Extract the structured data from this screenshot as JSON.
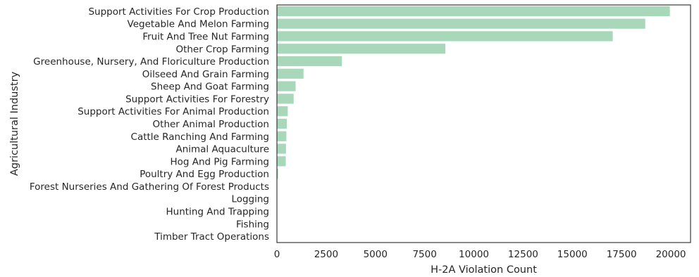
{
  "chart_data": {
    "type": "bar",
    "orientation": "horizontal",
    "xlabel": "H-2A Violation Count",
    "ylabel": "Agricultural Industry",
    "xlim": [
      0,
      21000
    ],
    "xticks": [
      0,
      2500,
      5000,
      7500,
      10000,
      12500,
      15000,
      17500,
      20000
    ],
    "grid": false,
    "bar_color": "#a8d8b9",
    "categories": [
      "Support Activities For Crop Production",
      "Vegetable And Melon Farming",
      "Fruit And Tree Nut Farming",
      "Other Crop Farming",
      "Greenhouse, Nursery, And Floriculture Production",
      "Oilseed And Grain Farming",
      "Sheep And Goat Farming",
      "Support Activities For Forestry",
      "Support Activities For Animal Production",
      "Other Animal Production",
      "Cattle Ranching And Farming",
      "Animal Aquaculture",
      "Hog And Pig Farming",
      "Poultry And Egg Production",
      "Forest Nurseries And Gathering Of Forest Products",
      "Logging",
      "Hunting And Trapping",
      "Fishing",
      "Timber Tract Operations"
    ],
    "values": [
      19950,
      18700,
      17050,
      8550,
      3300,
      1350,
      950,
      850,
      550,
      500,
      480,
      460,
      450,
      60,
      0,
      0,
      0,
      0,
      0
    ]
  }
}
